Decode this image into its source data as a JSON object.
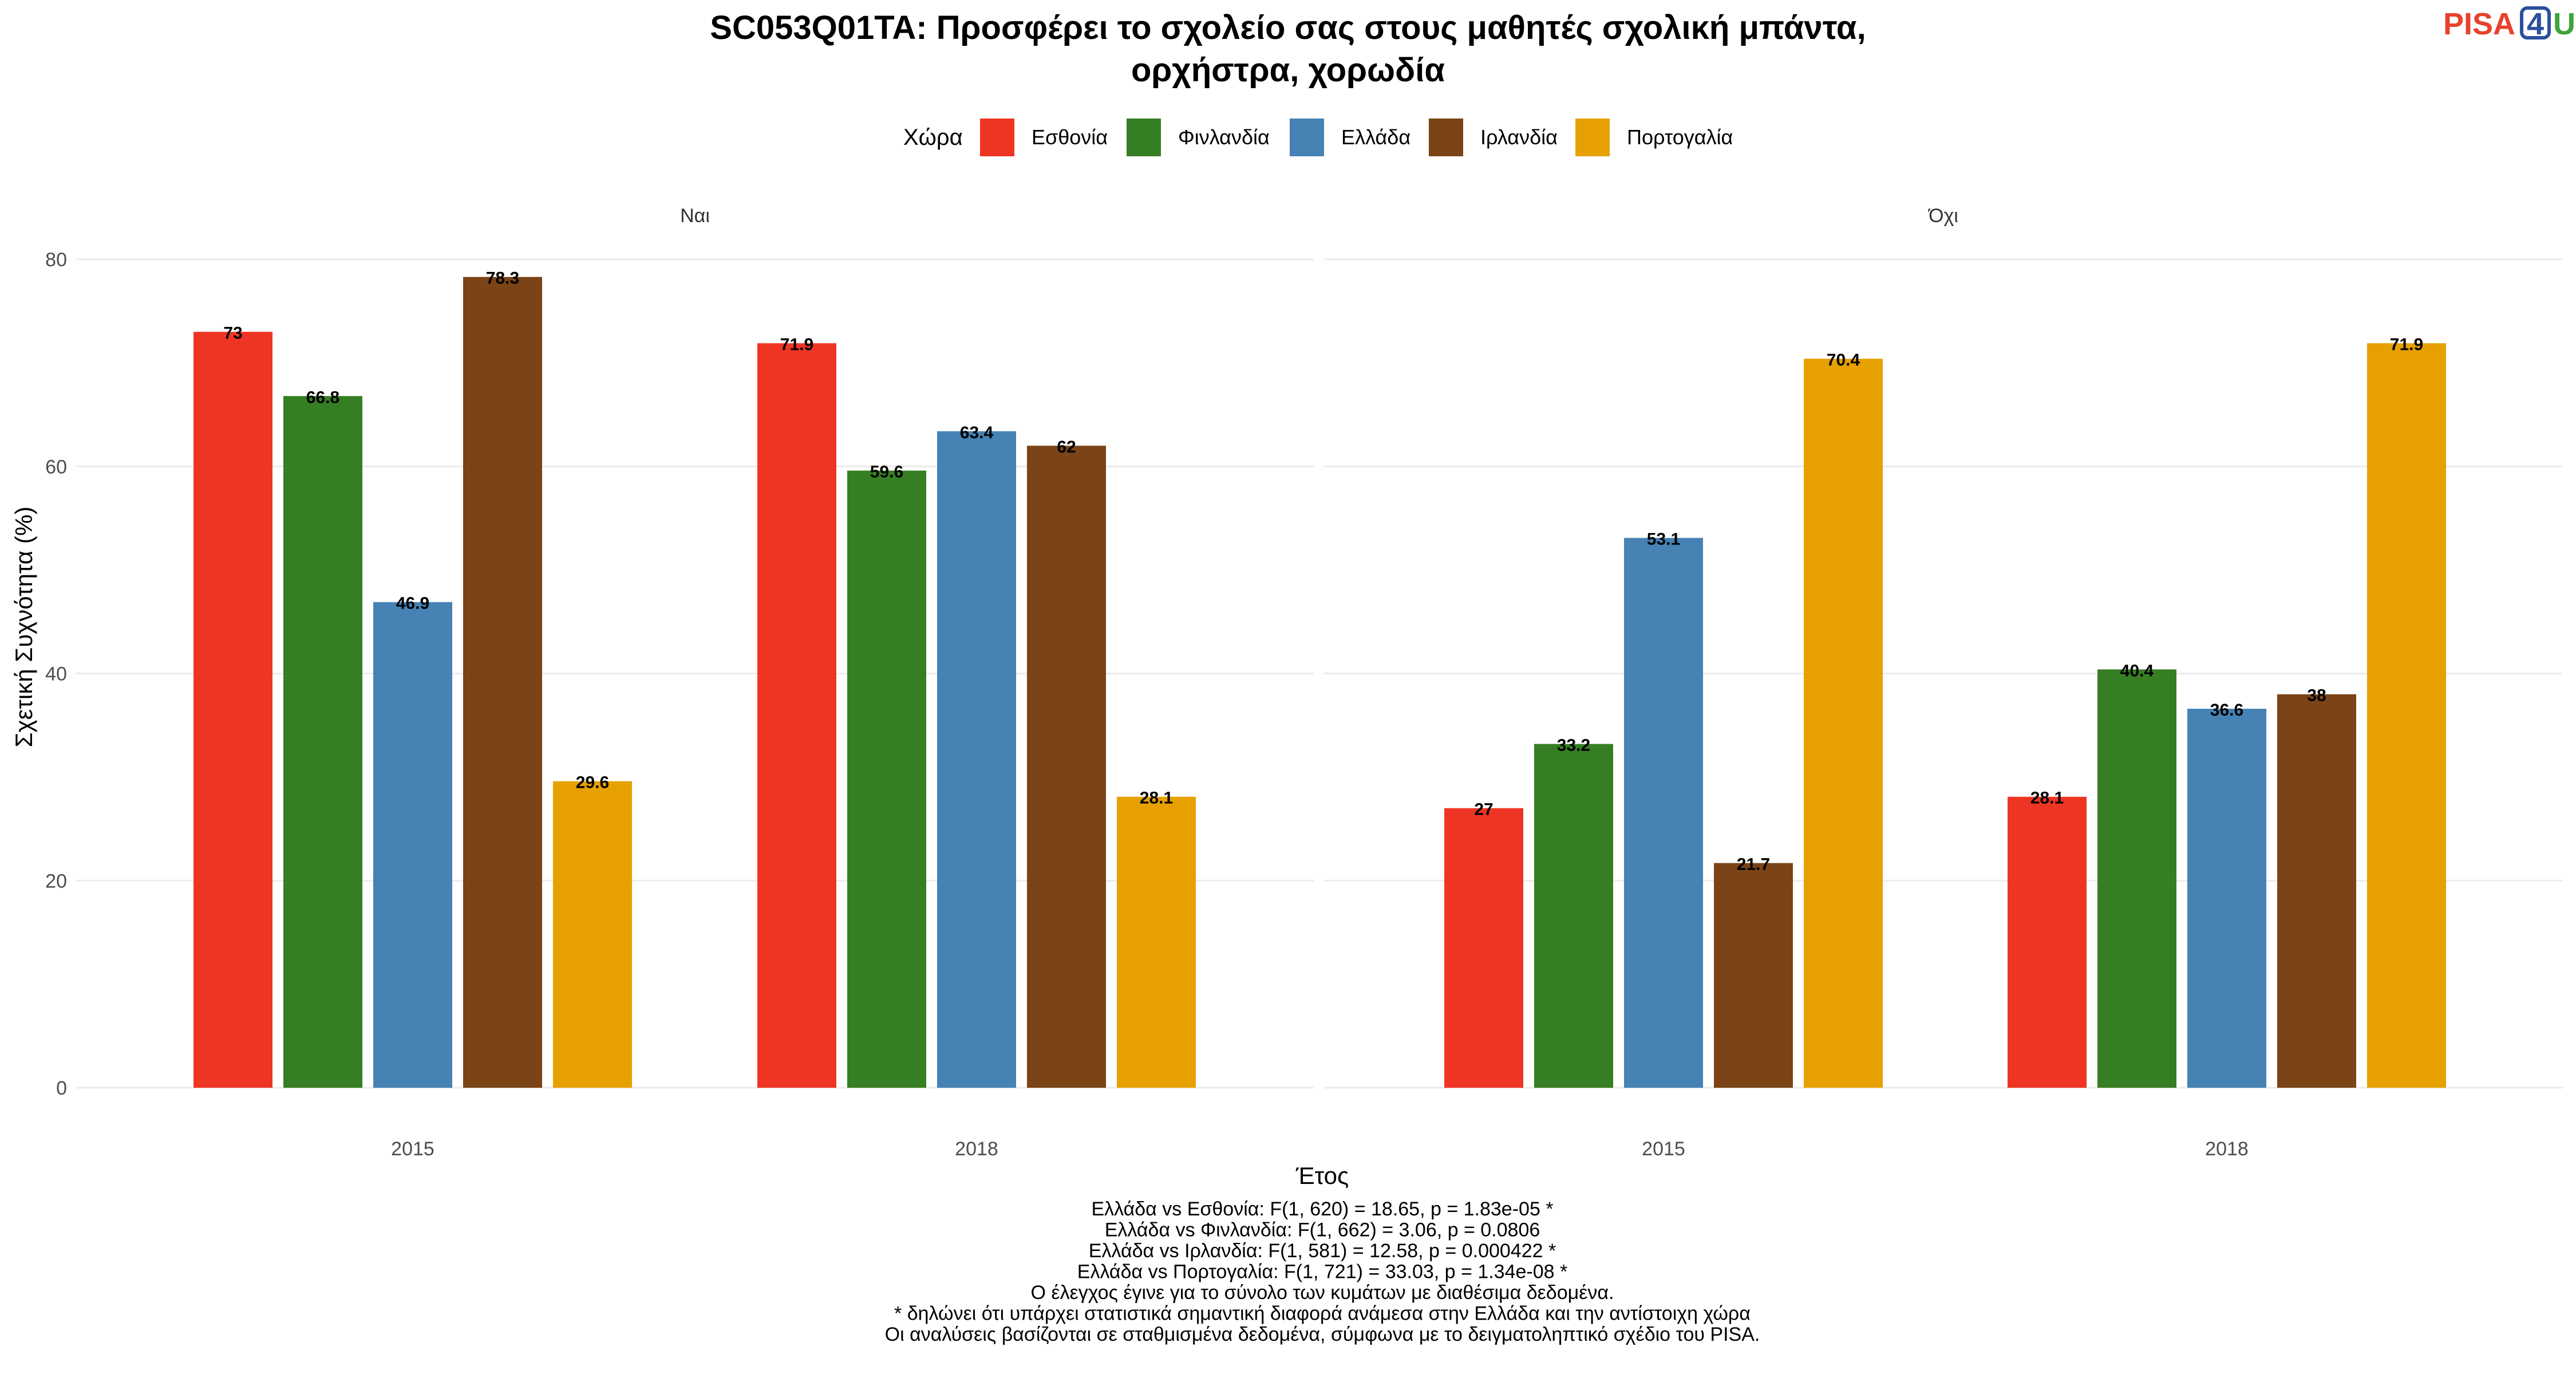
{
  "logo": {
    "pisa": "PISA",
    "four": "4",
    "u": "U",
    "colors": {
      "pisa": "#e8412c",
      "four": "#2c4f9e",
      "u": "#3da33a"
    }
  },
  "chart_data": {
    "type": "bar",
    "title": "SC053Q01TA: Προσφέρει το σχολείο σας στους μαθητές σχολική μπάντα,",
    "title_line2": "ορχήστρα, χορωδία",
    "legend_title": "Χώρα",
    "legend_position": "top",
    "series": [
      {
        "name": "Εσθονία",
        "color": "#ee3524"
      },
      {
        "name": "Φινλανδία",
        "color": "#367e23"
      },
      {
        "name": "Ελλάδα",
        "color": "#4682b4"
      },
      {
        "name": "Ιρλανδία",
        "color": "#7a4416"
      },
      {
        "name": "Πορτογαλία",
        "color": "#e6a100"
      }
    ],
    "xlabel": "Έτος",
    "ylabel": "Σχετική Συχνότητα (%)",
    "ylim": [
      0,
      83
    ],
    "yticks": [
      "0",
      "20",
      "40",
      "60",
      "80"
    ],
    "grid": true,
    "facets": [
      {
        "label": "Ναι",
        "categories": [
          "2015",
          "2018"
        ],
        "values": [
          [
            73,
            66.8,
            46.9,
            78.3,
            29.6
          ],
          [
            71.9,
            59.6,
            63.4,
            62,
            28.1
          ]
        ],
        "labels": [
          [
            "73",
            "66.8",
            "46.9",
            "78.3",
            "29.6"
          ],
          [
            "71.9",
            "59.6",
            "63.4",
            "62",
            "28.1"
          ]
        ]
      },
      {
        "label": "Όχι",
        "categories": [
          "2015",
          "2018"
        ],
        "values": [
          [
            27,
            33.2,
            53.1,
            21.7,
            70.4
          ],
          [
            28.1,
            40.4,
            36.6,
            38,
            71.9
          ]
        ],
        "labels": [
          [
            "27",
            "33.2",
            "53.1",
            "21.7",
            "70.4"
          ],
          [
            "28.1",
            "40.4",
            "36.6",
            "38",
            "71.9"
          ]
        ]
      }
    ],
    "caption": [
      "Ελλάδα vs Εσθονία: F(1, 620) = 18.65, p = 1.83e-05 *",
      "Ελλάδα vs Φινλανδία: F(1, 662) = 3.06, p = 0.0806",
      "Ελλάδα vs Ιρλανδία: F(1, 581) = 12.58, p = 0.000422 *",
      "Ελλάδα vs Πορτογαλία: F(1, 721) = 33.03, p = 1.34e-08 *",
      "Ο έλεγχος έγινε για το σύνολο των κυμάτων με διαθέσιμα δεδομένα.",
      "* δηλώνει ότι υπάρχει στατιστικά σημαντική διαφορά ανάμεσα στην Ελλάδα και την αντίστοιχη χώρα",
      "Οι αναλύσεις βασίζονται σε σταθμισμένα δεδομένα, σύμφωνα με το δειγματοληπτικό σχέδιο του PISA."
    ]
  }
}
